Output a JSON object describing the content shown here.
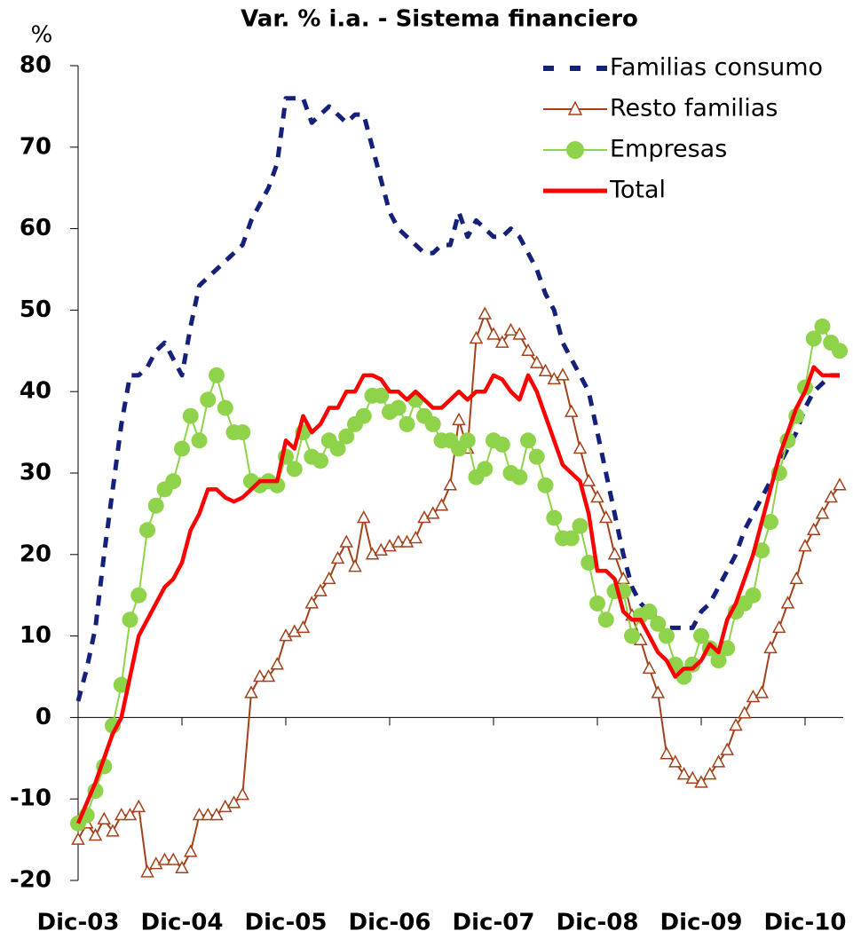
{
  "chart_data": {
    "type": "line",
    "title": "Var. % i.a. - Sistema financiero",
    "y_label": "%",
    "categories": [
      "Dic-03",
      null,
      null,
      null,
      null,
      null,
      null,
      null,
      null,
      null,
      null,
      null,
      "Dic-04",
      null,
      null,
      null,
      null,
      null,
      null,
      null,
      null,
      null,
      null,
      null,
      "Dic-05",
      null,
      null,
      null,
      null,
      null,
      null,
      null,
      null,
      null,
      null,
      null,
      "Dic-06",
      null,
      null,
      null,
      null,
      null,
      null,
      null,
      null,
      null,
      null,
      null,
      "Dic-07",
      null,
      null,
      null,
      null,
      null,
      null,
      null,
      null,
      null,
      null,
      null,
      "Dic-08",
      null,
      null,
      null,
      null,
      null,
      null,
      null,
      null,
      null,
      null,
      null,
      "Dic-09",
      null,
      null,
      null,
      null,
      null,
      null,
      null,
      null,
      null,
      null,
      null,
      "Dic-10",
      null,
      null,
      null,
      null
    ],
    "series": [
      {
        "name": "Familias consumo",
        "color": "#14207a",
        "dash": true,
        "marker": null,
        "values": [
          2,
          6,
          11,
          20,
          28,
          36,
          42,
          42,
          43,
          45,
          46,
          44,
          42,
          48,
          53,
          54,
          55,
          56,
          57,
          58,
          61,
          63,
          65,
          68,
          76,
          76,
          76,
          73,
          74,
          75,
          74,
          73,
          74,
          74,
          70,
          66,
          62,
          60,
          59,
          58,
          57,
          57,
          58,
          58,
          62,
          59,
          61,
          60,
          59,
          59,
          60,
          59,
          57,
          55,
          52,
          50,
          46,
          44,
          42,
          40,
          35,
          30,
          25,
          20,
          16,
          14,
          13,
          12,
          11,
          11,
          11,
          11,
          13,
          14,
          16,
          18,
          20,
          23,
          25,
          27,
          29,
          31,
          33,
          35,
          38,
          40,
          41,
          42,
          42
        ]
      },
      {
        "name": "Resto familias",
        "color": "#a3421a",
        "dash": false,
        "marker": "triangle",
        "values": [
          -15,
          -13,
          -14.5,
          -12.5,
          -14,
          -12,
          -12,
          -11,
          -19,
          -18,
          -17.5,
          -17.5,
          -18.5,
          -16.5,
          -12,
          -12,
          -12,
          -11,
          -10.5,
          -9.5,
          3,
          5,
          5,
          6.5,
          10,
          10.5,
          11,
          14,
          15.5,
          17,
          19.5,
          21.5,
          18.5,
          24.5,
          20,
          20.5,
          21,
          21.5,
          21.5,
          22,
          24.5,
          25,
          26,
          28.5,
          36.5,
          33,
          46.5,
          49.5,
          47,
          46,
          47.5,
          47,
          45,
          43.5,
          42.5,
          41.5,
          42,
          37.5,
          33,
          29,
          27,
          24.5,
          20,
          17,
          12.5,
          9.5,
          6,
          3,
          -4.5,
          -5.5,
          -7,
          -7.5,
          -8,
          -7,
          -5.5,
          -4,
          -1,
          0.5,
          2.5,
          3,
          8.5,
          11,
          14,
          17,
          21,
          23,
          25,
          27,
          28.5
        ]
      },
      {
        "name": "Empresas",
        "color": "#8ed34a",
        "dash": false,
        "marker": "circle",
        "values": [
          -13,
          -12,
          -9,
          -6,
          -1,
          4,
          12,
          15,
          23,
          26,
          28,
          29,
          33,
          37,
          34,
          39,
          42,
          38,
          35,
          35,
          29,
          28.5,
          29,
          28.5,
          32,
          30.5,
          35,
          32,
          31.5,
          34,
          33,
          34.5,
          36,
          37,
          39.5,
          39.5,
          37.5,
          38,
          36,
          39,
          37,
          36,
          34,
          34,
          33,
          34,
          29.5,
          30.5,
          34,
          33.5,
          30,
          29.5,
          34,
          32,
          28.5,
          24.5,
          22,
          22,
          23.5,
          19,
          14,
          12,
          15.5,
          15.5,
          10,
          12.5,
          13,
          11.5,
          10,
          6.5,
          5,
          6.5,
          10,
          8.5,
          7,
          8.5,
          13,
          14,
          15,
          20.5,
          24,
          30,
          34,
          37,
          40.5,
          46.5,
          48,
          46,
          45
        ]
      },
      {
        "name": "Total",
        "color": "#ff0000",
        "dash": false,
        "marker": null,
        "values": [
          -13,
          -10.5,
          -8,
          -5,
          -2,
          0,
          5,
          10,
          12,
          14,
          16,
          17,
          19,
          23,
          25,
          28,
          28,
          27,
          26.5,
          27,
          28,
          29,
          29,
          29,
          34,
          33,
          37,
          35,
          36,
          38,
          38,
          40,
          40,
          42,
          42,
          41.5,
          40,
          40,
          39,
          40,
          39,
          38,
          38,
          39,
          40,
          39,
          40,
          40,
          42,
          41.5,
          40,
          39,
          42,
          40,
          37,
          34,
          31,
          30,
          29,
          25,
          18,
          18,
          17,
          13,
          12,
          12,
          10,
          8,
          7,
          5,
          6,
          6,
          7,
          9,
          8,
          12,
          14,
          17,
          20,
          24,
          28,
          32,
          35,
          38,
          40,
          43,
          42,
          42,
          42
        ]
      }
    ],
    "ylim": [
      -20,
      80
    ],
    "yticks": [
      -20,
      -10,
      0,
      10,
      20,
      30,
      40,
      50,
      60,
      70,
      80
    ],
    "legend": "upper right"
  }
}
